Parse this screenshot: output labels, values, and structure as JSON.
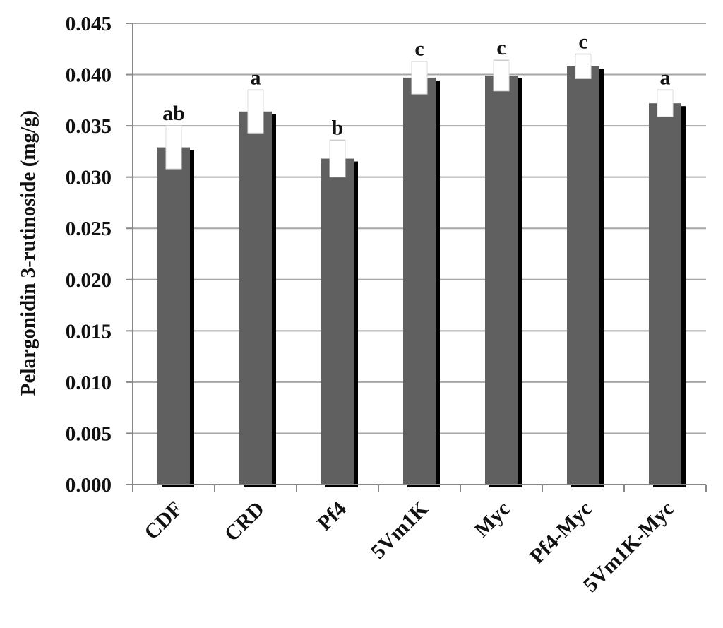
{
  "chart_data": {
    "type": "bar",
    "title": "",
    "xlabel": "",
    "ylabel": "Pelargonidin 3-rutinoside (mg/g)",
    "ylim": [
      0,
      0.045
    ],
    "yticks": [
      "0.000",
      "0.005",
      "0.010",
      "0.015",
      "0.020",
      "0.025",
      "0.030",
      "0.035",
      "0.040",
      "0.045"
    ],
    "categories": [
      "CDF",
      "CRD",
      "Pf4",
      "5Vm1K",
      "Myc",
      "Pf4-Myc",
      "5Vm1K-Myc"
    ],
    "values": [
      0.0329,
      0.0364,
      0.0318,
      0.0397,
      0.0399,
      0.0408,
      0.0372
    ],
    "errors": [
      0.0021,
      0.0021,
      0.0018,
      0.0016,
      0.0015,
      0.0012,
      0.0013
    ],
    "significance": [
      "ab",
      "a",
      "b",
      "c",
      "c",
      "c",
      "a"
    ],
    "grid": true,
    "colors": {
      "bar": "#606060",
      "shadow": "#000000",
      "grid": "#a6a6a6",
      "axis": "#888888"
    }
  }
}
